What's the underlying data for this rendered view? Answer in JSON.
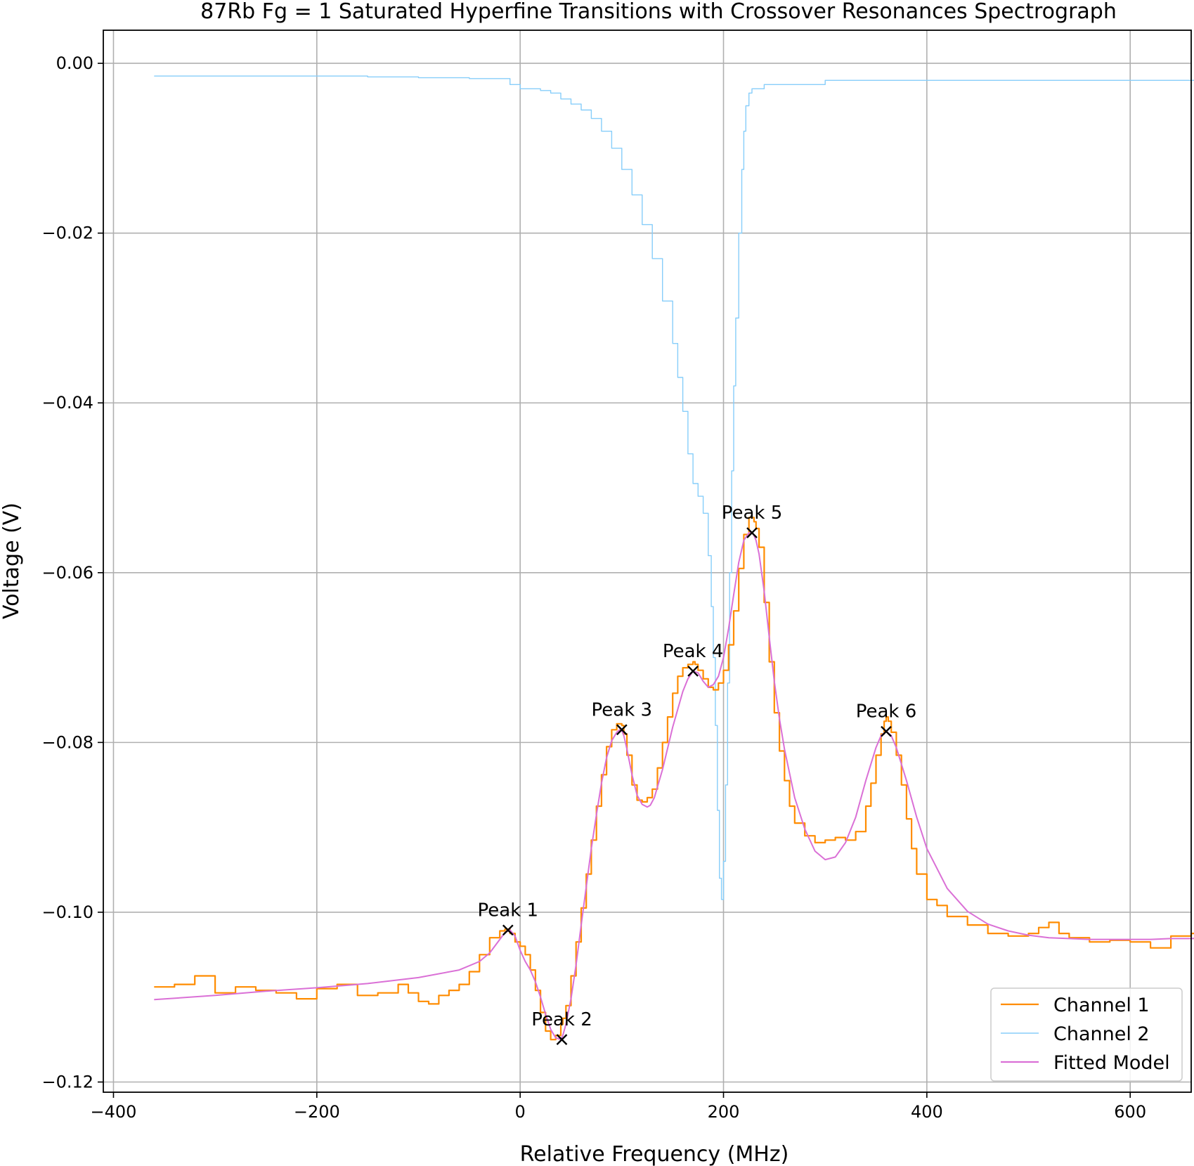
{
  "chart_data": {
    "type": "line",
    "title": "87Rb Fg = 1 Saturated Hyperfine Transitions with Crossover Resonances Spectrograph",
    "xlabel": "Relative Frequency (MHz)",
    "ylabel": "Voltage (V)",
    "xlim": [
      -410,
      660
    ],
    "ylim": [
      -0.1212,
      0.0039
    ],
    "xticks": [
      -400,
      -200,
      0,
      200,
      400,
      600
    ],
    "xtick_labels": [
      "−400",
      "−200",
      "0",
      "200",
      "400",
      "600"
    ],
    "yticks": [
      0.0,
      -0.02,
      -0.04,
      -0.06,
      -0.08,
      -0.1,
      -0.12
    ],
    "ytick_labels": [
      "0.00",
      "−0.02",
      "−0.04",
      "−0.06",
      "−0.08",
      "−0.10",
      "−0.12"
    ],
    "grid": true,
    "legend_position": "lower-right",
    "series": [
      {
        "name": "Channel 1",
        "color": "#ff8c00",
        "x": [
          -360,
          -340,
          -320,
          -300,
          -280,
          -260,
          -240,
          -220,
          -200,
          -180,
          -160,
          -140,
          -120,
          -110,
          -100,
          -90,
          -80,
          -70,
          -60,
          -50,
          -40,
          -30,
          -20,
          -15,
          -10,
          -5,
          0,
          5,
          10,
          15,
          20,
          25,
          30,
          35,
          40,
          42,
          45,
          50,
          55,
          60,
          65,
          70,
          75,
          80,
          85,
          90,
          95,
          98,
          100,
          102,
          105,
          110,
          115,
          120,
          125,
          130,
          135,
          140,
          145,
          150,
          155,
          160,
          165,
          170,
          172,
          175,
          180,
          185,
          190,
          195,
          200,
          205,
          210,
          215,
          220,
          225,
          228,
          230,
          232,
          235,
          240,
          245,
          250,
          255,
          260,
          265,
          270,
          280,
          290,
          300,
          310,
          320,
          330,
          340,
          345,
          350,
          355,
          358,
          360,
          362,
          365,
          370,
          375,
          380,
          385,
          390,
          400,
          410,
          420,
          440,
          460,
          480,
          500,
          510,
          520,
          530,
          540,
          560,
          580,
          600,
          620,
          640,
          660,
          680
        ],
        "values": [
          -0.1088,
          -0.1085,
          -0.1075,
          -0.1095,
          -0.1088,
          -0.1092,
          -0.1095,
          -0.1102,
          -0.109,
          -0.1085,
          -0.1098,
          -0.1095,
          -0.1085,
          -0.1095,
          -0.1105,
          -0.1108,
          -0.1098,
          -0.1092,
          -0.1085,
          -0.107,
          -0.105,
          -0.103,
          -0.1022,
          -0.102,
          -0.1025,
          -0.1035,
          -0.104,
          -0.105,
          -0.1068,
          -0.1092,
          -0.1118,
          -0.114,
          -0.115,
          -0.1145,
          -0.1132,
          -0.1125,
          -0.111,
          -0.1075,
          -0.1035,
          -0.0995,
          -0.0955,
          -0.0915,
          -0.0875,
          -0.0838,
          -0.0805,
          -0.0785,
          -0.0778,
          -0.0778,
          -0.078,
          -0.079,
          -0.0815,
          -0.085,
          -0.0868,
          -0.087,
          -0.0865,
          -0.0855,
          -0.083,
          -0.08,
          -0.077,
          -0.0742,
          -0.0722,
          -0.0712,
          -0.0708,
          -0.0705,
          -0.0708,
          -0.0715,
          -0.0725,
          -0.0735,
          -0.0738,
          -0.073,
          -0.0715,
          -0.0685,
          -0.0645,
          -0.0595,
          -0.0555,
          -0.0535,
          -0.0535,
          -0.054,
          -0.0548,
          -0.057,
          -0.0635,
          -0.0705,
          -0.0765,
          -0.081,
          -0.0845,
          -0.0875,
          -0.0895,
          -0.091,
          -0.0918,
          -0.0915,
          -0.0912,
          -0.0915,
          -0.0905,
          -0.0875,
          -0.0848,
          -0.0815,
          -0.079,
          -0.0775,
          -0.077,
          -0.0775,
          -0.0788,
          -0.0815,
          -0.085,
          -0.089,
          -0.0925,
          -0.0955,
          -0.0985,
          -0.0992,
          -0.1005,
          -0.1015,
          -0.1025,
          -0.1028,
          -0.1025,
          -0.1018,
          -0.1012,
          -0.1025,
          -0.103,
          -0.1035,
          -0.1033,
          -0.1035,
          -0.1042,
          -0.1028,
          -0.1025,
          -0.103
        ]
      },
      {
        "name": "Channel 2",
        "color": "#87cefa",
        "x": [
          -360,
          -300,
          -250,
          -200,
          -150,
          -100,
          -50,
          -10,
          0,
          10,
          20,
          30,
          40,
          50,
          60,
          70,
          80,
          90,
          100,
          110,
          120,
          130,
          140,
          150,
          155,
          160,
          165,
          170,
          175,
          180,
          185,
          188,
          190,
          192,
          194,
          196,
          198,
          200,
          202,
          204,
          206,
          208,
          210,
          212,
          215,
          218,
          220,
          222,
          225,
          228,
          232,
          240,
          300,
          400,
          500,
          600,
          680
        ],
        "values": [
          -0.0015,
          -0.0015,
          -0.0015,
          -0.0015,
          -0.0016,
          -0.0017,
          -0.0018,
          -0.0025,
          -0.003,
          -0.003,
          -0.0032,
          -0.0035,
          -0.0042,
          -0.0048,
          -0.0055,
          -0.0065,
          -0.008,
          -0.01,
          -0.0125,
          -0.0155,
          -0.019,
          -0.023,
          -0.028,
          -0.033,
          -0.037,
          -0.041,
          -0.046,
          -0.0495,
          -0.051,
          -0.053,
          -0.058,
          -0.064,
          -0.07,
          -0.078,
          -0.088,
          -0.096,
          -0.0985,
          -0.094,
          -0.085,
          -0.073,
          -0.06,
          -0.048,
          -0.038,
          -0.03,
          -0.02,
          -0.0125,
          -0.008,
          -0.005,
          -0.0035,
          -0.003,
          -0.003,
          -0.0025,
          -0.002,
          -0.002,
          -0.002,
          -0.002,
          -0.0025
        ]
      },
      {
        "name": "Fitted Model",
        "color": "#da70d6",
        "x": [
          -360,
          -300,
          -250,
          -200,
          -150,
          -100,
          -60,
          -40,
          -30,
          -20,
          -15,
          -10,
          -5,
          0,
          5,
          10,
          15,
          20,
          25,
          30,
          35,
          40,
          42,
          45,
          50,
          55,
          60,
          65,
          70,
          75,
          80,
          85,
          90,
          95,
          98,
          100,
          102,
          105,
          110,
          115,
          120,
          125,
          128,
          132,
          140,
          150,
          160,
          165,
          170,
          175,
          180,
          185,
          190,
          195,
          200,
          205,
          210,
          215,
          220,
          225,
          228,
          230,
          232,
          235,
          240,
          245,
          250,
          255,
          260,
          270,
          280,
          290,
          300,
          310,
          320,
          330,
          340,
          350,
          355,
          360,
          365,
          370,
          380,
          390,
          400,
          420,
          440,
          460,
          480,
          500,
          520,
          540,
          560,
          580,
          600,
          620,
          640,
          660,
          680
        ],
        "values": [
          -0.1103,
          -0.1098,
          -0.1093,
          -0.1089,
          -0.1084,
          -0.1077,
          -0.1068,
          -0.1058,
          -0.1048,
          -0.1032,
          -0.1024,
          -0.1021,
          -0.1028,
          -0.1045,
          -0.1058,
          -0.1068,
          -0.1082,
          -0.11,
          -0.112,
          -0.1138,
          -0.1148,
          -0.115,
          -0.1145,
          -0.1132,
          -0.1102,
          -0.1062,
          -0.1015,
          -0.097,
          -0.0925,
          -0.0885,
          -0.0848,
          -0.0818,
          -0.0798,
          -0.0788,
          -0.0785,
          -0.0786,
          -0.0792,
          -0.0808,
          -0.0838,
          -0.0862,
          -0.0873,
          -0.0876,
          -0.0874,
          -0.0865,
          -0.0832,
          -0.0782,
          -0.074,
          -0.0725,
          -0.0716,
          -0.0718,
          -0.0728,
          -0.0735,
          -0.0732,
          -0.0722,
          -0.07,
          -0.0666,
          -0.0626,
          -0.0588,
          -0.0562,
          -0.0553,
          -0.0553,
          -0.0556,
          -0.0562,
          -0.0578,
          -0.0622,
          -0.0676,
          -0.0728,
          -0.0772,
          -0.0808,
          -0.0865,
          -0.0902,
          -0.0928,
          -0.0938,
          -0.0935,
          -0.0918,
          -0.0888,
          -0.0845,
          -0.0806,
          -0.0792,
          -0.0787,
          -0.0792,
          -0.0806,
          -0.0845,
          -0.0888,
          -0.0925,
          -0.0972,
          -0.0999,
          -0.1014,
          -0.1022,
          -0.1027,
          -0.103,
          -0.1031,
          -0.1032,
          -0.1032,
          -0.1032,
          -0.1032,
          -0.1031,
          -0.1031,
          -0.103
        ]
      }
    ],
    "peaks": [
      {
        "label": "Peak 1",
        "x": -12,
        "y": -0.1021
      },
      {
        "label": "Peak 2",
        "x": 41,
        "y": -0.115
      },
      {
        "label": "Peak 3",
        "x": 100,
        "y": -0.0785
      },
      {
        "label": "Peak 4",
        "x": 170,
        "y": -0.0716
      },
      {
        "label": "Peak 5",
        "x": 228,
        "y": -0.0553
      },
      {
        "label": "Peak 6",
        "x": 360,
        "y": -0.0787
      }
    ],
    "peak_marker_color": "#000000"
  }
}
